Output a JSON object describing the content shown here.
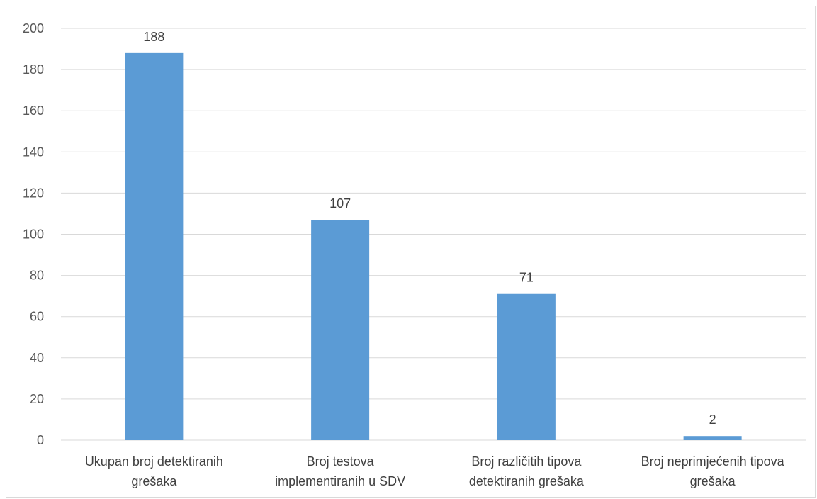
{
  "chart_data": {
    "type": "bar",
    "categories": [
      [
        "Ukupan broj detektiranih",
        "grešaka"
      ],
      [
        "Broj testova",
        "implementiranih u SDV"
      ],
      [
        "Broj različitih tipova",
        "detektiranih grešaka"
      ],
      [
        "Broj neprimjećenih tipova",
        "grešaka"
      ]
    ],
    "values": [
      188,
      107,
      71,
      2
    ],
    "data_labels": [
      "188",
      "107",
      "71",
      "2"
    ],
    "yticks": [
      0,
      20,
      40,
      60,
      80,
      100,
      120,
      140,
      160,
      180,
      200
    ],
    "ylim": [
      0,
      200
    ],
    "grid": true,
    "legend": "none",
    "bar_color": "#5b9bd5"
  }
}
